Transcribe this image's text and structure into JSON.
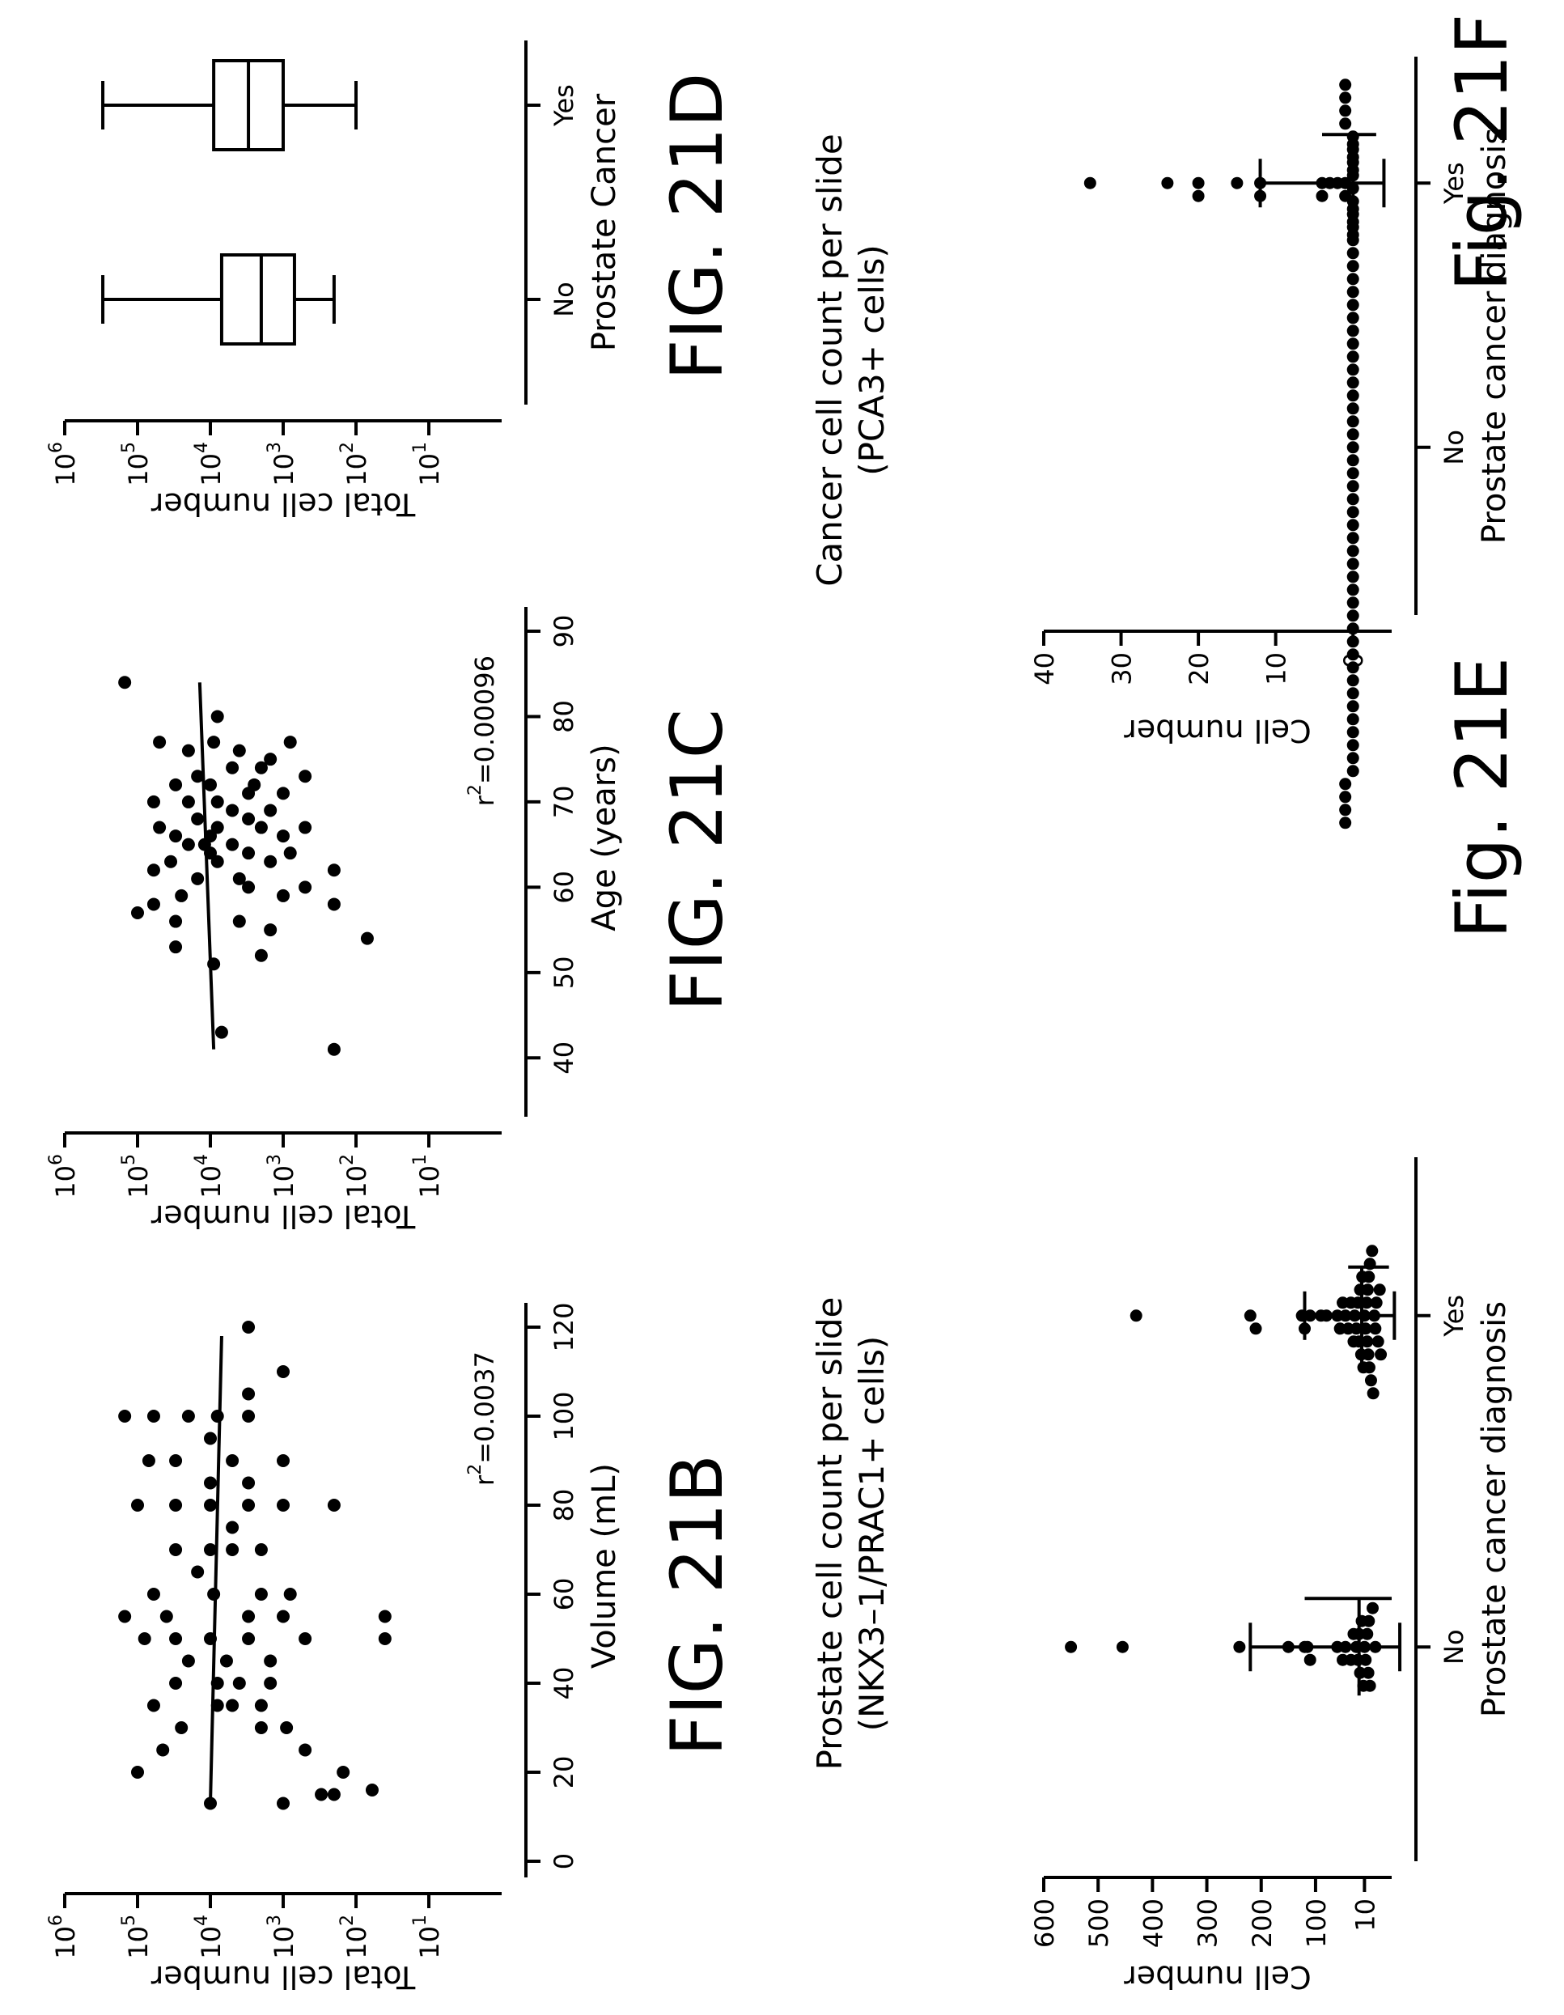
{
  "figures": [
    {
      "id": "21B",
      "label": "FIG. 21B",
      "chart_data": {
        "type": "scatter",
        "xlabel": "Volume (mL)",
        "ylabel": "Total cell number",
        "xlim": [
          0,
          120
        ],
        "xticks": [
          "0",
          "20",
          "40",
          "60",
          "80",
          "100",
          "120"
        ],
        "yscale": "log",
        "ylim": [
          1,
          1000000
        ],
        "yticks": [
          {
            "base": "10",
            "exp": "1",
            "value": 10
          },
          {
            "base": "10",
            "exp": "2",
            "value": 100
          },
          {
            "base": "10",
            "exp": "3",
            "value": 1000
          },
          {
            "base": "10",
            "exp": "4",
            "value": 10000
          },
          {
            "base": "10",
            "exp": "5",
            "value": 100000
          },
          {
            "base": "10",
            "exp": "6",
            "value": 1000000
          }
        ],
        "annotation": {
          "prefix": "r",
          "sup": "2",
          "value": "=0.0037"
        },
        "fit_line": [
          [
            13,
            10000
          ],
          [
            118,
            7000
          ]
        ],
        "points": [
          [
            20,
            100000
          ],
          [
            30,
            25000
          ],
          [
            25,
            45000
          ],
          [
            35,
            60000
          ],
          [
            40,
            30000
          ],
          [
            35,
            8000
          ],
          [
            40,
            8000
          ],
          [
            35,
            2000
          ],
          [
            35,
            5000
          ],
          [
            30,
            2000
          ],
          [
            30,
            900
          ],
          [
            25,
            500
          ],
          [
            15,
            200
          ],
          [
            15,
            300
          ],
          [
            13,
            1000
          ],
          [
            13,
            10000
          ],
          [
            16,
            60
          ],
          [
            20,
            150
          ],
          [
            40,
            4000
          ],
          [
            40,
            1500
          ],
          [
            45,
            1500
          ],
          [
            45,
            6000
          ],
          [
            50,
            80000
          ],
          [
            50,
            30000
          ],
          [
            50,
            10000
          ],
          [
            50,
            3000
          ],
          [
            50,
            500
          ],
          [
            50,
            40
          ],
          [
            55,
            150000
          ],
          [
            55,
            40000
          ],
          [
            55,
            40
          ],
          [
            55,
            3000
          ],
          [
            55,
            1000
          ],
          [
            60,
            60000
          ],
          [
            60,
            9000
          ],
          [
            60,
            2000
          ],
          [
            60,
            800
          ],
          [
            70,
            30000
          ],
          [
            70,
            10000
          ],
          [
            70,
            5000
          ],
          [
            70,
            2000
          ],
          [
            80,
            100000
          ],
          [
            80,
            30000
          ],
          [
            80,
            10000
          ],
          [
            80,
            3000
          ],
          [
            80,
            1000
          ],
          [
            80,
            200
          ],
          [
            85,
            10000
          ],
          [
            85,
            3000
          ],
          [
            90,
            70000
          ],
          [
            90,
            30000
          ],
          [
            90,
            1000
          ],
          [
            90,
            5000
          ],
          [
            95,
            10000
          ],
          [
            100,
            150000
          ],
          [
            100,
            60000
          ],
          [
            100,
            20000
          ],
          [
            100,
            8000
          ],
          [
            100,
            3000
          ],
          [
            110,
            1000
          ],
          [
            120,
            3000
          ],
          [
            45,
            20000
          ],
          [
            65,
            15000
          ],
          [
            75,
            5000
          ],
          [
            105,
            3000
          ]
        ]
      }
    },
    {
      "id": "21C",
      "label": "FIG. 21C",
      "chart_data": {
        "type": "scatter",
        "xlabel": "Age (years)",
        "ylabel": "Total cell number",
        "xlim": [
          35,
          90
        ],
        "xticks": [
          "40",
          "50",
          "60",
          "70",
          "80",
          "90"
        ],
        "yscale": "log",
        "ylim": [
          1,
          1000000
        ],
        "yticks": [
          {
            "base": "10",
            "exp": "1",
            "value": 10
          },
          {
            "base": "10",
            "exp": "2",
            "value": 100
          },
          {
            "base": "10",
            "exp": "3",
            "value": 1000
          },
          {
            "base": "10",
            "exp": "4",
            "value": 10000
          },
          {
            "base": "10",
            "exp": "5",
            "value": 100000
          },
          {
            "base": "10",
            "exp": "6",
            "value": 1000000
          }
        ],
        "annotation": {
          "prefix": "r",
          "sup": "2",
          "value": "=0.00096"
        },
        "fit_line": [
          [
            41,
            9000
          ],
          [
            84,
            14000
          ]
        ],
        "points": [
          [
            41,
            200
          ],
          [
            43,
            7000
          ],
          [
            53,
            30000
          ],
          [
            54,
            70
          ],
          [
            55,
            1500
          ],
          [
            56,
            4000
          ],
          [
            57,
            100000
          ],
          [
            58,
            60000
          ],
          [
            59,
            25000
          ],
          [
            59,
            1000
          ],
          [
            60,
            3000
          ],
          [
            61,
            15000
          ],
          [
            62,
            200
          ],
          [
            62,
            60000
          ],
          [
            63,
            8000
          ],
          [
            63,
            1500
          ],
          [
            64,
            800
          ],
          [
            64,
            3000
          ],
          [
            65,
            12000
          ],
          [
            65,
            5000
          ],
          [
            65,
            20000
          ],
          [
            66,
            10000
          ],
          [
            66,
            1000
          ],
          [
            67,
            50000
          ],
          [
            67,
            8000
          ],
          [
            67,
            500
          ],
          [
            67,
            2000
          ],
          [
            68,
            15000
          ],
          [
            68,
            3000
          ],
          [
            69,
            5000
          ],
          [
            70,
            20000
          ],
          [
            70,
            60000
          ],
          [
            70,
            8000
          ],
          [
            71,
            3000
          ],
          [
            71,
            1000
          ],
          [
            72,
            30000
          ],
          [
            72,
            10000
          ],
          [
            73,
            500
          ],
          [
            74,
            5000
          ],
          [
            74,
            2000
          ],
          [
            75,
            1500
          ],
          [
            76,
            20000
          ],
          [
            76,
            4000
          ],
          [
            77,
            50000
          ],
          [
            77,
            9000
          ],
          [
            77,
            800
          ],
          [
            80,
            8000
          ],
          [
            84,
            150000
          ],
          [
            52,
            2000
          ],
          [
            51,
            9000
          ],
          [
            56,
            30000
          ],
          [
            60,
            500
          ],
          [
            61,
            4000
          ],
          [
            66,
            30000
          ],
          [
            69,
            1500
          ],
          [
            73,
            15000
          ],
          [
            58,
            200
          ],
          [
            63,
            35000
          ],
          [
            72,
            2500
          ],
          [
            64,
            10000
          ]
        ]
      }
    },
    {
      "id": "21D",
      "label": "FIG. 21D",
      "chart_data": {
        "type": "box",
        "xlabel": "Prostate Cancer",
        "ylabel": "Total cell number",
        "categories": [
          "No",
          "Yes"
        ],
        "yscale": "log",
        "ylim": [
          1,
          1000000
        ],
        "yticks": [
          {
            "base": "10",
            "exp": "1",
            "value": 10
          },
          {
            "base": "10",
            "exp": "2",
            "value": 100
          },
          {
            "base": "10",
            "exp": "3",
            "value": 1000
          },
          {
            "base": "10",
            "exp": "4",
            "value": 10000
          },
          {
            "base": "10",
            "exp": "5",
            "value": 100000
          },
          {
            "base": "10",
            "exp": "6",
            "value": 1000000
          }
        ],
        "boxes": [
          {
            "min": 200,
            "q1": 700,
            "median": 2000,
            "q3": 7000,
            "max": 300000
          },
          {
            "min": 100,
            "q1": 1000,
            "median": 3000,
            "q3": 9000,
            "max": 300000
          }
        ]
      }
    },
    {
      "id": "21E",
      "label": "Fig. 21E",
      "chart_data": {
        "type": "dot",
        "title_lines": [
          "Prostate cell count per slide",
          "(NKX3–1/PRAC1+ cells)"
        ],
        "xlabel": "Prostate cancer diagnosis",
        "ylabel": "Cell number",
        "categories": [
          "No",
          "Yes"
        ],
        "ylim": [
          -40,
          600
        ],
        "yticks": [
          "10",
          "100",
          "200",
          "300",
          "400",
          "500",
          "600"
        ],
        "ytick_values": [
          10,
          100,
          200,
          300,
          400,
          500,
          600
        ],
        "mean_sd": [
          {
            "mean": 20,
            "sd_low": -55,
            "sd_high": 220,
            "bar_low": -40,
            "bar_high": 120
          },
          {
            "mean": 15,
            "sd_low": -45,
            "sd_high": 120,
            "bar_low": -35,
            "bar_high": 40
          }
        ],
        "points": [
          [
            550,
            455,
            240,
            150,
            120,
            115,
            110,
            60,
            50,
            45,
            35,
            30,
            25,
            22,
            20,
            18,
            15,
            12,
            10,
            8,
            5,
            3,
            2,
            0,
            -5,
            -10
          ],
          [
            430,
            220,
            210,
            125,
            120,
            110,
            90,
            80,
            60,
            55,
            50,
            45,
            40,
            35,
            30,
            28,
            25,
            22,
            20,
            18,
            16,
            14,
            12,
            10,
            8,
            6,
            5,
            4,
            3,
            2,
            1,
            0,
            -2,
            -4,
            -6,
            -8,
            -10,
            -12,
            -15,
            -18,
            -20
          ]
        ]
      }
    },
    {
      "id": "21F",
      "label": "Fig. 21F",
      "chart_data": {
        "type": "dot",
        "title_lines": [
          "Cancer cell count per slide",
          "(PCA3+ cells)"
        ],
        "xlabel": "Prostate cancer diagnosis",
        "ylabel": "Cell number",
        "categories": [
          "No",
          "Yes"
        ],
        "ylim": [
          -5,
          40
        ],
        "yticks": [
          "0",
          "10",
          "20",
          "30",
          "40"
        ],
        "ytick_values": [
          0,
          10,
          20,
          30,
          40
        ],
        "mean_sd": [
          {
            "mean": 0,
            "sd_low": 0,
            "sd_high": 0,
            "bar_low": 0,
            "bar_high": 0
          },
          {
            "mean": 0,
            "sd_low": -4,
            "sd_high": 12,
            "bar_low": -3,
            "bar_high": 4
          }
        ],
        "points": [
          [
            0,
            0,
            0,
            0,
            0,
            0,
            0,
            0,
            0,
            0,
            0,
            0,
            0,
            0,
            0,
            0,
            0,
            0,
            0,
            0,
            0,
            0,
            0,
            0,
            0,
            0,
            0,
            0,
            0,
            0,
            0,
            0,
            0,
            0,
            0,
            0,
            0,
            0,
            0,
            0,
            0,
            0,
            0,
            0,
            0,
            0,
            0,
            0,
            0,
            0,
            1,
            1,
            1,
            1,
            1,
            1,
            1,
            1
          ],
          [
            34,
            24,
            20,
            20,
            15,
            12,
            12,
            4,
            4,
            3,
            2,
            1,
            1,
            0,
            0,
            0,
            0,
            0,
            0
          ]
        ]
      }
    }
  ]
}
